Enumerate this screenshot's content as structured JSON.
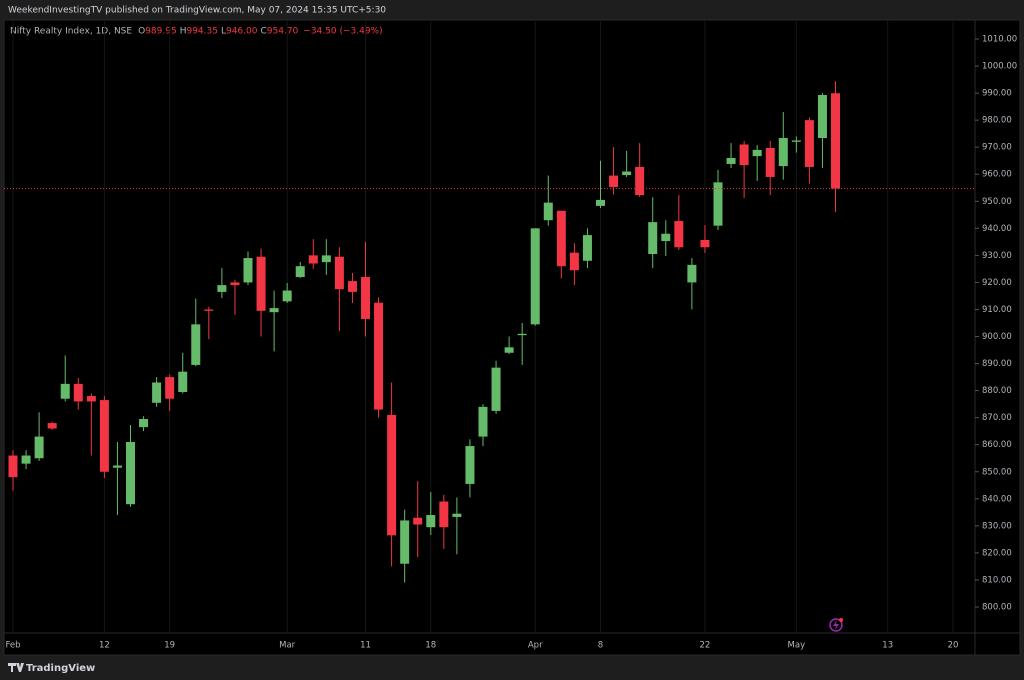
{
  "attribution": "WeekendInvestingTV published on TradingView.com, May 07, 2024 15:35 UTC+5:30",
  "branding": "TradingView",
  "chart_data": {
    "type": "candlestick",
    "title": "Nifty Realty Index, 1D, NSE",
    "ohlc_header": [
      {
        "label": "O",
        "value": "989.95"
      },
      {
        "label": "H",
        "value": "994.35"
      },
      {
        "label": "L",
        "value": "946.00"
      },
      {
        "label": "C",
        "value": "954.70"
      }
    ],
    "change": "−34.50 (−3.49%)",
    "categories": [
      "Feb",
      null,
      null,
      null,
      null,
      null,
      null,
      "12",
      null,
      null,
      null,
      null,
      "19",
      null,
      null,
      null,
      null,
      null,
      null,
      null,
      null,
      "Mar",
      null,
      null,
      null,
      null,
      null,
      "11",
      null,
      null,
      null,
      null,
      "18",
      null,
      null,
      null,
      null,
      null,
      null,
      null,
      "Apr",
      null,
      null,
      null,
      null,
      "8",
      null,
      null,
      null,
      null,
      null,
      null,
      null,
      "22",
      null,
      null,
      null,
      null,
      null,
      null,
      "May",
      null,
      null,
      null,
      null,
      null,
      null,
      "13",
      null,
      null,
      null,
      null,
      "20"
    ],
    "open": [
      856,
      853,
      855,
      868,
      877,
      882.5,
      878,
      876.5,
      851.5,
      838,
      866.5,
      875.5,
      885,
      879.5,
      889.5,
      910,
      916.5,
      920,
      920,
      929.5,
      909,
      913,
      922,
      930,
      927.5,
      929.5,
      920.5,
      922,
      912.5,
      871,
      816,
      833,
      829.5,
      839,
      833.3,
      845.5,
      863,
      872.5,
      894,
      900.5,
      904.5,
      943,
      946.5,
      931,
      928,
      948.3,
      959.5,
      959.7,
      962.7,
      930.5,
      935.3,
      942.7,
      920,
      935.7,
      941,
      963.8,
      971,
      966.7,
      969.7,
      963,
      972,
      980,
      973.4,
      989.95,
      null,
      null,
      null,
      null,
      null,
      null,
      null,
      null,
      null
    ],
    "high": [
      858,
      858,
      872,
      868.5,
      893,
      884.7,
      879,
      878,
      861,
      867.3,
      870.5,
      885,
      886,
      894,
      914,
      911,
      925.3,
      921,
      931.5,
      932.5,
      917,
      919.8,
      927.6,
      936,
      936,
      933,
      923.5,
      935,
      914.5,
      883,
      836,
      846.5,
      842.5,
      841.5,
      840.5,
      862,
      875,
      891,
      900,
      905,
      940,
      959.5,
      946.5,
      934.5,
      940,
      965,
      970,
      968.6,
      971.5,
      951.5,
      943,
      952.3,
      929,
      941.2,
      961.6,
      971.5,
      972.3,
      970.8,
      972.3,
      983,
      974,
      981,
      990,
      994.35,
      null,
      null,
      null,
      null,
      null,
      null,
      null,
      null,
      null
    ],
    "low": [
      843,
      851,
      854,
      865.5,
      876,
      873,
      856,
      847.7,
      834,
      837,
      865,
      874,
      872.5,
      879,
      889,
      899,
      914.2,
      908,
      919,
      900,
      894.5,
      912.4,
      921.6,
      925,
      922.8,
      902,
      912.4,
      900,
      870,
      815,
      809,
      818.5,
      826.6,
      821.5,
      819.5,
      840.5,
      859.5,
      871.4,
      893.5,
      889.5,
      904,
      941,
      921.5,
      919,
      925.3,
      947.5,
      952.5,
      959,
      951.6,
      925.3,
      929.8,
      932,
      910,
      930.9,
      939.4,
      962.3,
      951.2,
      957.5,
      952.3,
      958,
      968,
      956.5,
      962.3,
      946,
      null,
      null,
      null,
      null,
      null,
      null,
      null,
      null,
      null
    ],
    "close": [
      848,
      856,
      863,
      866,
      882.5,
      876,
      876,
      850,
      852.3,
      861,
      869.5,
      883,
      877,
      887,
      904.5,
      909.5,
      919,
      919,
      929,
      909.5,
      910.5,
      917,
      926,
      927,
      930,
      917.5,
      916.5,
      906.5,
      873,
      826.5,
      832,
      830.5,
      834,
      829.5,
      834.5,
      859.5,
      874,
      888.5,
      896,
      901,
      940,
      949.5,
      926,
      924.5,
      937.5,
      950.5,
      955.3,
      961,
      952.3,
      942.3,
      938,
      933,
      926.5,
      933,
      957,
      966,
      963.4,
      969,
      959,
      973.4,
      972.5,
      962.7,
      989.3,
      954.7,
      null,
      null,
      null,
      null,
      null,
      null,
      null,
      null,
      null
    ],
    "up_color": "#66bb6a",
    "down_color": "#f23645",
    "ylim": [
      800,
      1010
    ],
    "yticks": [
      {
        "value": 800,
        "label": "800.00"
      },
      {
        "value": 810,
        "label": "810.00"
      },
      {
        "value": 820,
        "label": "820.00"
      },
      {
        "value": 830,
        "label": "830.00"
      },
      {
        "value": 840,
        "label": "840.00"
      },
      {
        "value": 850,
        "label": "850.00"
      },
      {
        "value": 860,
        "label": "860.00"
      },
      {
        "value": 870,
        "label": "870.00"
      },
      {
        "value": 880,
        "label": "880.00"
      },
      {
        "value": 890,
        "label": "890.00"
      },
      {
        "value": 900,
        "label": "900.00"
      },
      {
        "value": 910,
        "label": "910.00"
      },
      {
        "value": 920,
        "label": "920.00"
      },
      {
        "value": 930,
        "label": "930.00"
      },
      {
        "value": 940,
        "label": "940.00"
      },
      {
        "value": 950,
        "label": "950.00"
      },
      {
        "value": 960,
        "label": "960.00"
      },
      {
        "value": 970,
        "label": "970.00"
      },
      {
        "value": 980,
        "label": "980.00"
      },
      {
        "value": 990,
        "label": "990.00"
      },
      {
        "value": 1000,
        "label": "1000.00"
      },
      {
        "value": 1010,
        "label": "1010.00"
      }
    ],
    "grid": true
  }
}
